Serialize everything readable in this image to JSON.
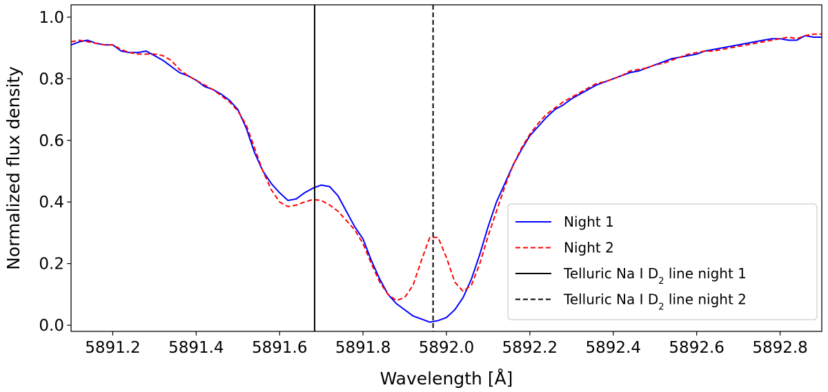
{
  "chart_data": {
    "type": "line",
    "xlabel": "Wavelength [Å]",
    "ylabel": "Normalized flux density",
    "xlim": [
      5891.1,
      5892.9
    ],
    "ylim": [
      -0.02,
      1.04
    ],
    "x_ticks": [
      5891.2,
      5891.4,
      5891.6,
      5891.8,
      5892.0,
      5892.2,
      5892.4,
      5892.6,
      5892.8
    ],
    "x_tick_labels": [
      "5891.2",
      "5891.4",
      "5891.6",
      "5891.8",
      "5892.0",
      "5892.2",
      "5892.4",
      "5892.6",
      "5892.8"
    ],
    "y_ticks": [
      0.0,
      0.2,
      0.4,
      0.6,
      0.8,
      1.0
    ],
    "y_tick_labels": [
      "0.0",
      "0.2",
      "0.4",
      "0.6",
      "0.8",
      "1.0"
    ],
    "grid": false,
    "legend_placement": "lower-right",
    "series": [
      {
        "name": "Night 1",
        "color": "#0000ff",
        "style": "solid",
        "points": [
          [
            5891.1,
            0.91
          ],
          [
            5891.12,
            0.92
          ],
          [
            5891.14,
            0.925
          ],
          [
            5891.16,
            0.915
          ],
          [
            5891.18,
            0.91
          ],
          [
            5891.2,
            0.91
          ],
          [
            5891.22,
            0.89
          ],
          [
            5891.24,
            0.885
          ],
          [
            5891.26,
            0.885
          ],
          [
            5891.28,
            0.89
          ],
          [
            5891.3,
            0.875
          ],
          [
            5891.32,
            0.86
          ],
          [
            5891.34,
            0.84
          ],
          [
            5891.36,
            0.82
          ],
          [
            5891.38,
            0.81
          ],
          [
            5891.4,
            0.795
          ],
          [
            5891.42,
            0.775
          ],
          [
            5891.44,
            0.765
          ],
          [
            5891.46,
            0.75
          ],
          [
            5891.48,
            0.73
          ],
          [
            5891.5,
            0.7
          ],
          [
            5891.52,
            0.64
          ],
          [
            5891.54,
            0.56
          ],
          [
            5891.56,
            0.5
          ],
          [
            5891.58,
            0.46
          ],
          [
            5891.6,
            0.43
          ],
          [
            5891.62,
            0.405
          ],
          [
            5891.64,
            0.41
          ],
          [
            5891.66,
            0.43
          ],
          [
            5891.68,
            0.445
          ],
          [
            5891.7,
            0.455
          ],
          [
            5891.72,
            0.45
          ],
          [
            5891.74,
            0.42
          ],
          [
            5891.76,
            0.37
          ],
          [
            5891.78,
            0.32
          ],
          [
            5891.8,
            0.28
          ],
          [
            5891.82,
            0.21
          ],
          [
            5891.84,
            0.15
          ],
          [
            5891.86,
            0.1
          ],
          [
            5891.88,
            0.07
          ],
          [
            5891.9,
            0.05
          ],
          [
            5891.92,
            0.03
          ],
          [
            5891.94,
            0.02
          ],
          [
            5891.96,
            0.01
          ],
          [
            5891.98,
            0.015
          ],
          [
            5892.0,
            0.025
          ],
          [
            5892.02,
            0.05
          ],
          [
            5892.04,
            0.09
          ],
          [
            5892.06,
            0.15
          ],
          [
            5892.08,
            0.23
          ],
          [
            5892.1,
            0.32
          ],
          [
            5892.12,
            0.4
          ],
          [
            5892.14,
            0.46
          ],
          [
            5892.16,
            0.52
          ],
          [
            5892.18,
            0.57
          ],
          [
            5892.2,
            0.615
          ],
          [
            5892.22,
            0.645
          ],
          [
            5892.24,
            0.675
          ],
          [
            5892.26,
            0.7
          ],
          [
            5892.28,
            0.715
          ],
          [
            5892.3,
            0.735
          ],
          [
            5892.32,
            0.75
          ],
          [
            5892.34,
            0.765
          ],
          [
            5892.36,
            0.78
          ],
          [
            5892.38,
            0.79
          ],
          [
            5892.4,
            0.8
          ],
          [
            5892.42,
            0.81
          ],
          [
            5892.44,
            0.82
          ],
          [
            5892.46,
            0.825
          ],
          [
            5892.48,
            0.835
          ],
          [
            5892.5,
            0.845
          ],
          [
            5892.52,
            0.855
          ],
          [
            5892.54,
            0.865
          ],
          [
            5892.56,
            0.87
          ],
          [
            5892.58,
            0.875
          ],
          [
            5892.6,
            0.88
          ],
          [
            5892.62,
            0.89
          ],
          [
            5892.64,
            0.895
          ],
          [
            5892.66,
            0.9
          ],
          [
            5892.68,
            0.905
          ],
          [
            5892.7,
            0.91
          ],
          [
            5892.72,
            0.915
          ],
          [
            5892.74,
            0.92
          ],
          [
            5892.76,
            0.925
          ],
          [
            5892.78,
            0.93
          ],
          [
            5892.8,
            0.93
          ],
          [
            5892.82,
            0.925
          ],
          [
            5892.84,
            0.925
          ],
          [
            5892.86,
            0.94
          ],
          [
            5892.88,
            0.935
          ],
          [
            5892.9,
            0.935
          ]
        ]
      },
      {
        "name": "Night 2",
        "color": "#ff0000",
        "style": "dashed",
        "points": [
          [
            5891.1,
            0.92
          ],
          [
            5891.12,
            0.925
          ],
          [
            5891.14,
            0.92
          ],
          [
            5891.16,
            0.915
          ],
          [
            5891.18,
            0.91
          ],
          [
            5891.2,
            0.91
          ],
          [
            5891.22,
            0.895
          ],
          [
            5891.24,
            0.885
          ],
          [
            5891.26,
            0.88
          ],
          [
            5891.28,
            0.88
          ],
          [
            5891.3,
            0.88
          ],
          [
            5891.32,
            0.875
          ],
          [
            5891.34,
            0.86
          ],
          [
            5891.36,
            0.83
          ],
          [
            5891.38,
            0.81
          ],
          [
            5891.4,
            0.795
          ],
          [
            5891.42,
            0.78
          ],
          [
            5891.44,
            0.765
          ],
          [
            5891.46,
            0.745
          ],
          [
            5891.48,
            0.725
          ],
          [
            5891.5,
            0.695
          ],
          [
            5891.52,
            0.65
          ],
          [
            5891.54,
            0.575
          ],
          [
            5891.56,
            0.5
          ],
          [
            5891.58,
            0.44
          ],
          [
            5891.6,
            0.4
          ],
          [
            5891.62,
            0.385
          ],
          [
            5891.64,
            0.39
          ],
          [
            5891.66,
            0.4
          ],
          [
            5891.68,
            0.408
          ],
          [
            5891.7,
            0.405
          ],
          [
            5891.72,
            0.39
          ],
          [
            5891.74,
            0.37
          ],
          [
            5891.76,
            0.34
          ],
          [
            5891.78,
            0.31
          ],
          [
            5891.8,
            0.265
          ],
          [
            5891.82,
            0.2
          ],
          [
            5891.84,
            0.14
          ],
          [
            5891.86,
            0.1
          ],
          [
            5891.88,
            0.08
          ],
          [
            5891.9,
            0.09
          ],
          [
            5891.92,
            0.13
          ],
          [
            5891.94,
            0.21
          ],
          [
            5891.96,
            0.285
          ],
          [
            5891.98,
            0.285
          ],
          [
            5892.0,
            0.22
          ],
          [
            5892.02,
            0.14
          ],
          [
            5892.04,
            0.11
          ],
          [
            5892.06,
            0.13
          ],
          [
            5892.08,
            0.2
          ],
          [
            5892.1,
            0.29
          ],
          [
            5892.12,
            0.37
          ],
          [
            5892.14,
            0.45
          ],
          [
            5892.16,
            0.52
          ],
          [
            5892.18,
            0.575
          ],
          [
            5892.2,
            0.62
          ],
          [
            5892.22,
            0.655
          ],
          [
            5892.24,
            0.685
          ],
          [
            5892.26,
            0.705
          ],
          [
            5892.28,
            0.725
          ],
          [
            5892.3,
            0.74
          ],
          [
            5892.32,
            0.755
          ],
          [
            5892.34,
            0.77
          ],
          [
            5892.36,
            0.785
          ],
          [
            5892.38,
            0.79
          ],
          [
            5892.4,
            0.8
          ],
          [
            5892.42,
            0.81
          ],
          [
            5892.44,
            0.825
          ],
          [
            5892.46,
            0.83
          ],
          [
            5892.48,
            0.835
          ],
          [
            5892.5,
            0.845
          ],
          [
            5892.52,
            0.85
          ],
          [
            5892.54,
            0.86
          ],
          [
            5892.56,
            0.87
          ],
          [
            5892.58,
            0.88
          ],
          [
            5892.6,
            0.885
          ],
          [
            5892.62,
            0.89
          ],
          [
            5892.64,
            0.89
          ],
          [
            5892.66,
            0.895
          ],
          [
            5892.68,
            0.9
          ],
          [
            5892.7,
            0.905
          ],
          [
            5892.72,
            0.91
          ],
          [
            5892.74,
            0.915
          ],
          [
            5892.76,
            0.92
          ],
          [
            5892.78,
            0.925
          ],
          [
            5892.8,
            0.93
          ],
          [
            5892.82,
            0.935
          ],
          [
            5892.84,
            0.93
          ],
          [
            5892.86,
            0.94
          ],
          [
            5892.88,
            0.945
          ],
          [
            5892.9,
            0.945
          ]
        ]
      }
    ],
    "vertical_lines": [
      {
        "name": "Telluric Na I D",
        "subscript": "2",
        "suffix": " line night 1",
        "x": 5891.684,
        "color": "#000000",
        "style": "solid"
      },
      {
        "name": "Telluric Na I D",
        "subscript": "2",
        "suffix": " line night 2",
        "x": 5891.968,
        "color": "#000000",
        "style": "dashed"
      }
    ]
  }
}
